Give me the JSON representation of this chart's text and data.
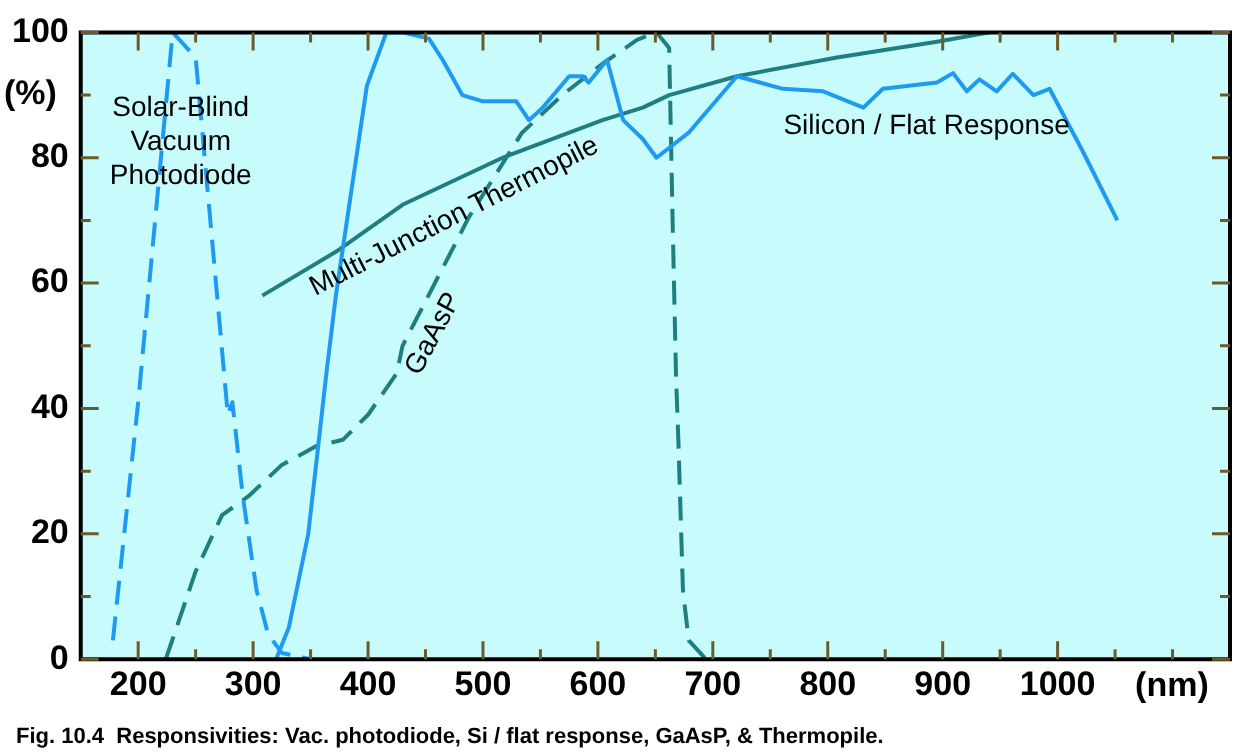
{
  "chart_data": {
    "type": "line",
    "xlabel": "(nm)",
    "ylabel": "(%)",
    "xlim": [
      150,
      1150
    ],
    "xticks": [
      200,
      {
        "value": 250,
        "label": null
      },
      300,
      {
        "value": 350,
        "label": null
      },
      400,
      {
        "value": 450,
        "label": null
      },
      500,
      {
        "value": 550,
        "label": null
      },
      600,
      {
        "value": 650,
        "label": null
      },
      700,
      {
        "value": 750,
        "label": null
      },
      800,
      {
        "value": 850,
        "label": null
      },
      900,
      {
        "value": 950,
        "label": null
      },
      1000,
      {
        "value": 1050,
        "label": null
      },
      {
        "value": 1100,
        "label": null
      }
    ],
    "ylim": [
      0,
      100
    ],
    "yticks": [
      0,
      {
        "value": 10,
        "label": null
      },
      20,
      {
        "value": 30,
        "label": null
      },
      40,
      {
        "value": 50,
        "label": null
      },
      60,
      {
        "value": 70,
        "label": null
      },
      80,
      {
        "value": 90,
        "label": null
      },
      100
    ],
    "grid": false,
    "legend": false,
    "marker": "none",
    "series": [
      {
        "color": "#1e9bf0",
        "line_style": "dashed",
        "x": [
          178,
          200,
          230,
          250,
          278,
          282,
          291,
          303,
          313,
          325,
          350
        ],
        "values": [
          3,
          41,
          100,
          96,
          39,
          41,
          26,
          11,
          4,
          1,
          0
        ]
      },
      {
        "color": "#1e9bf0",
        "line_style": "solid",
        "x": [
          320,
          331,
          348,
          364,
          372,
          399,
          416,
          430,
          453,
          465,
          482,
          500,
          529,
          540,
          552,
          575,
          587,
          592,
          608,
          622,
          639,
          651,
          679,
          721,
          761,
          796,
          831,
          848,
          895,
          909,
          921,
          932,
          947,
          961,
          979,
          993,
          1022,
          1052
        ],
        "values": [
          0,
          5,
          20,
          46,
          58,
          91.5,
          100,
          100,
          99,
          95.6,
          90,
          89,
          89,
          86,
          88,
          93,
          93,
          92,
          95.6,
          86,
          83,
          80,
          84,
          93,
          91,
          90.6,
          88,
          91,
          92,
          93.5,
          90.6,
          92.5,
          90.6,
          93.4,
          90,
          91,
          81,
          70
        ]
      },
      {
        "color": "#1f7f80",
        "line_style": "solid",
        "x": [
          308,
          372,
          430,
          517,
          604,
          639,
          662,
          721,
          808,
          895,
          941
        ],
        "values": [
          58,
          65,
          72.5,
          80,
          86,
          88,
          90,
          93,
          96,
          98.5,
          100
        ]
      },
      {
        "color": "#1f7f80",
        "line_style": "dashed",
        "x": [
          224,
          250,
          273,
          296,
          325,
          355,
          378,
          400,
          425,
          430,
          488,
          534,
          569,
          604,
          634,
          651,
          662,
          665,
          668,
          670,
          674,
          679,
          694
        ],
        "values": [
          0,
          14,
          23,
          26,
          31,
          34,
          35,
          39,
          45.6,
          50,
          70.6,
          84,
          90,
          95,
          98.8,
          100,
          97.5,
          70,
          45,
          35,
          11,
          3,
          0
        ]
      }
    ],
    "annotations": [
      "Solar-Blind\nVacuum\nPhotodiode",
      "Multi-Junction Thermopile",
      "GaAsP",
      "Silicon / Flat Response",
      "Fig. 10.4  Responsivities: Vac. photodiode, Si / flat response, GaAsP, & Thermopile."
    ]
  }
}
